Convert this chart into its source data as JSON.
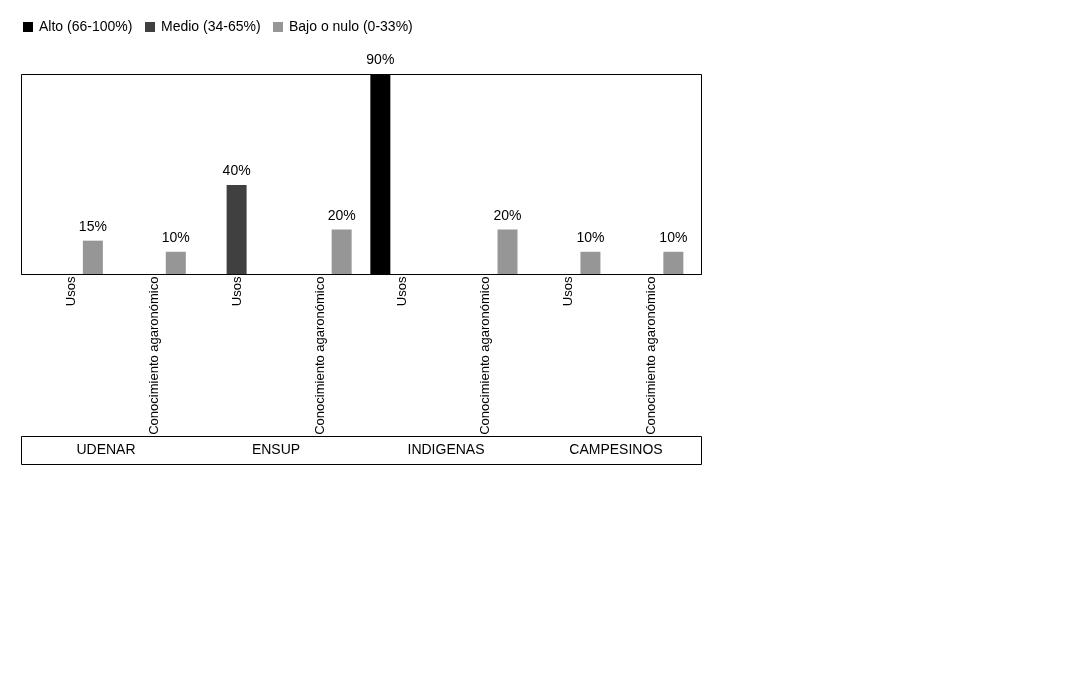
{
  "chart_data": {
    "type": "bar",
    "categories": [
      "Usos",
      "Conocimiento agaronómico",
      "Usos",
      "Conocimiento agaronómico",
      "Usos",
      "Conocimiento agaronómico",
      "Usos",
      "Conocimiento agaronómico"
    ],
    "series": [
      {
        "name": "Alto (66-100%)",
        "color": "#000000",
        "values": [
          null,
          null,
          null,
          null,
          90,
          null,
          null,
          null
        ],
        "value_labels": [
          null,
          null,
          null,
          null,
          "90%",
          null,
          null,
          null
        ]
      },
      {
        "name": "Medio (34-65%)",
        "color": "#404040",
        "values": [
          null,
          null,
          40,
          null,
          null,
          null,
          null,
          null
        ],
        "value_labels": [
          null,
          null,
          "40%",
          null,
          null,
          null,
          null,
          null
        ]
      },
      {
        "name": "Bajo o nulo (0-33%)",
        "color": "#969696",
        "values": [
          15,
          10,
          null,
          20,
          null,
          20,
          10,
          10
        ],
        "value_labels": [
          "15%",
          "10%",
          null,
          "20%",
          null,
          "20%",
          "10%",
          "10%"
        ]
      }
    ],
    "annotations": [
      "UDENAR",
      "ENSUP",
      "INDIGENAS",
      "CAMPESINOS"
    ],
    "legend": "top",
    "grid": false
  }
}
